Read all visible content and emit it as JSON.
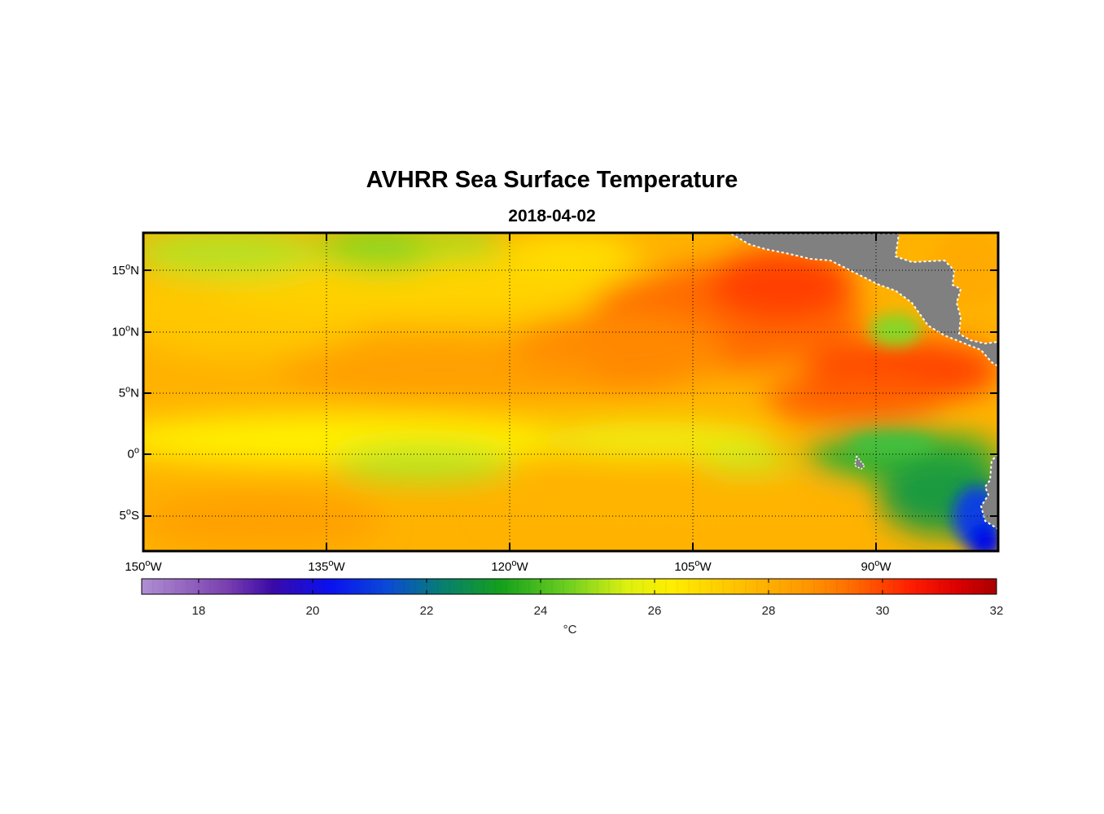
{
  "chart_data": {
    "type": "heatmap",
    "title": "AVHRR Sea Surface Temperature",
    "subtitle": "2018-04-02",
    "variable": "Sea surface temperature",
    "units": "°C",
    "lon_range": [
      -150,
      -80
    ],
    "lat_range": [
      -8,
      18
    ],
    "lon_ticks": [
      {
        "value": -150,
        "deg": "150",
        "hemi": "W"
      },
      {
        "value": -135,
        "deg": "135",
        "hemi": "W"
      },
      {
        "value": -120,
        "deg": "120",
        "hemi": "W"
      },
      {
        "value": -105,
        "deg": "105",
        "hemi": "W"
      },
      {
        "value": -90,
        "deg": "90",
        "hemi": "W"
      }
    ],
    "lat_ticks": [
      {
        "value": 15,
        "deg": "15",
        "hemi": "N"
      },
      {
        "value": 10,
        "deg": "10",
        "hemi": "N"
      },
      {
        "value": 5,
        "deg": "5",
        "hemi": "N"
      },
      {
        "value": 0,
        "deg": "0",
        "hemi": ""
      },
      {
        "value": -5,
        "deg": "5",
        "hemi": "S"
      }
    ],
    "grid": "dotted",
    "colorbar": {
      "range": [
        17,
        32
      ],
      "ticks": [
        "18",
        "20",
        "22",
        "24",
        "26",
        "28",
        "30",
        "32"
      ],
      "label": "°C",
      "colors": [
        {
          "t": 17.0,
          "c": "#b08fd2"
        },
        {
          "t": 18.5,
          "c": "#7a3fb0"
        },
        {
          "t": 19.3,
          "c": "#3a0aa8"
        },
        {
          "t": 20.3,
          "c": "#0a10f0"
        },
        {
          "t": 21.3,
          "c": "#0a4ad8"
        },
        {
          "t": 22.3,
          "c": "#08806e"
        },
        {
          "t": 23.3,
          "c": "#14a01c"
        },
        {
          "t": 24.5,
          "c": "#70d020"
        },
        {
          "t": 25.5,
          "c": "#dcf010"
        },
        {
          "t": 26.3,
          "c": "#ffee00"
        },
        {
          "t": 27.5,
          "c": "#ffc000"
        },
        {
          "t": 28.7,
          "c": "#ff9600"
        },
        {
          "t": 29.5,
          "c": "#ff6a00"
        },
        {
          "t": 30.5,
          "c": "#ff1e00"
        },
        {
          "t": 31.3,
          "c": "#dd0000"
        },
        {
          "t": 32.0,
          "c": "#a80000"
        }
      ]
    },
    "sst_pattern": [
      {
        "feature": "background tropics",
        "lon": -120,
        "lat": 5,
        "sst_c": 27.6
      },
      {
        "feature": "warm pool",
        "lon": -102,
        "lat": 12,
        "sst_c": 30.0
      },
      {
        "feature": "warm tongue",
        "lon": -90,
        "lat": 6,
        "sst_c": 30.2
      },
      {
        "feature": "cool band near 0°",
        "lon": -128,
        "lat": -1,
        "sst_c": 25.8
      },
      {
        "feature": "northern cool patch",
        "lon": -135,
        "lat": 17,
        "sst_c": 24.8
      },
      {
        "feature": "equatorial cold tongue",
        "lon": -88,
        "lat": -2,
        "sst_c": 23.5
      },
      {
        "feature": "Peru coastal upwelling",
        "lon": -81,
        "lat": -6.5,
        "sst_c": 20.5
      }
    ],
    "land": [
      "Central America",
      "Mexico",
      "South America coast",
      "Galapagos"
    ]
  }
}
